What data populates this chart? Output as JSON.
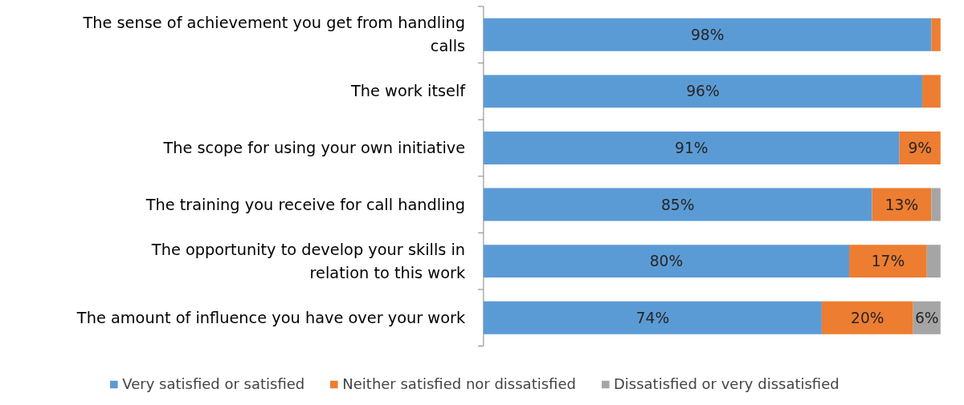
{
  "chart_data": {
    "type": "bar",
    "orientation": "horizontal",
    "stacked": true,
    "categories": [
      "The sense of achievement you get from handling calls",
      "The work itself",
      "The scope for using your own initiative",
      "The training you receive for call handling",
      "The opportunity to develop your skills in relation to this work",
      "The amount of influence you have over your work"
    ],
    "series": [
      {
        "name": "Very satisfied or satisfied",
        "color": "#5b9bd5",
        "values": [
          98,
          96,
          91,
          85,
          80,
          74
        ],
        "value_labels": [
          "98%",
          "96%",
          "91%",
          "85%",
          "80%",
          "74%"
        ]
      },
      {
        "name": "Neither satisfied nor dissatisfied",
        "color": "#ed7d31",
        "values": [
          2,
          4,
          9,
          13,
          17,
          20
        ],
        "value_labels": [
          null,
          null,
          "9%",
          "13%",
          "17%",
          "20%"
        ]
      },
      {
        "name": "Dissatisfied or very dissatisfied",
        "color": "#a5a5a5",
        "values": [
          0,
          0,
          0,
          2,
          3,
          6
        ],
        "value_labels": [
          null,
          null,
          null,
          null,
          null,
          "6%"
        ]
      }
    ],
    "xlim": [
      0,
      100
    ],
    "tick_labels": "y",
    "legend": "bottom"
  }
}
